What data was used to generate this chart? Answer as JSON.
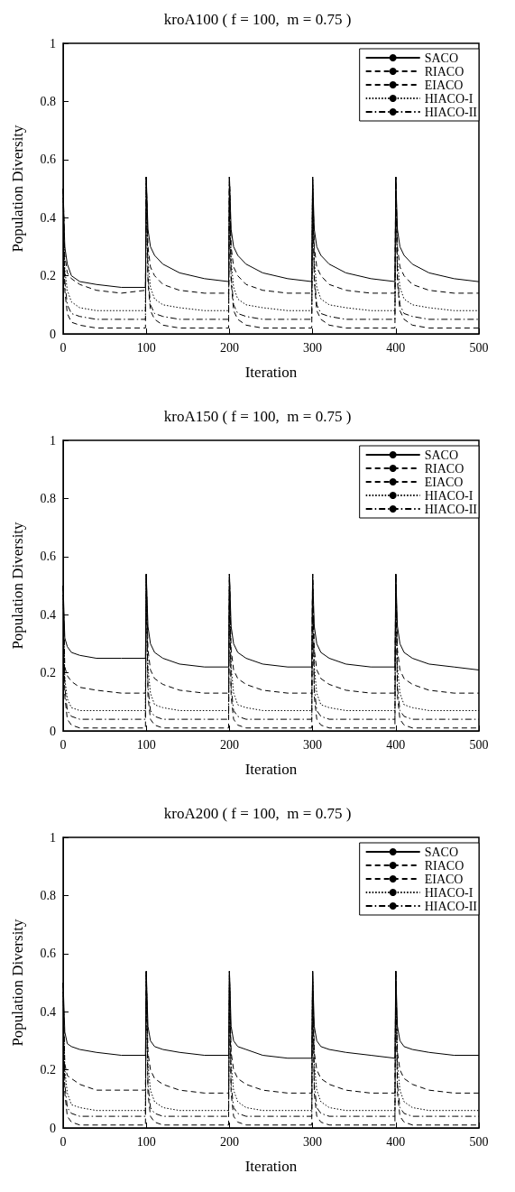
{
  "chart_data": [
    {
      "type": "line",
      "title": "kroA100 ( f = 100,  m = 0.75 )",
      "xlabel": "Iteration",
      "ylabel": "Population Diversity",
      "xlim": [
        0,
        500
      ],
      "ylim": [
        0,
        1
      ],
      "xticks": [
        0,
        100,
        200,
        300,
        400,
        500
      ],
      "yticks": [
        0,
        0.2,
        0.4,
        0.6,
        0.8,
        1
      ],
      "legend": "top right",
      "marker": "none",
      "x": [
        0,
        2,
        5,
        10,
        20,
        40,
        70,
        99,
        100,
        102,
        105,
        110,
        120,
        140,
        170,
        199,
        200,
        202,
        205,
        210,
        220,
        240,
        270,
        299,
        300,
        302,
        305,
        310,
        320,
        340,
        370,
        399,
        400,
        402,
        405,
        410,
        420,
        440,
        470,
        499,
        500
      ],
      "series": [
        {
          "name": "SACO",
          "color": "#000000",
          "line_style": "solid",
          "values": [
            0.5,
            0.3,
            0.24,
            0.2,
            0.18,
            0.17,
            0.16,
            0.16,
            0.54,
            0.36,
            0.3,
            0.27,
            0.24,
            0.21,
            0.19,
            0.18,
            0.54,
            0.36,
            0.3,
            0.27,
            0.24,
            0.21,
            0.19,
            0.18,
            0.54,
            0.36,
            0.3,
            0.27,
            0.24,
            0.21,
            0.19,
            0.18,
            0.54,
            0.36,
            0.3,
            0.27,
            0.24,
            0.21,
            0.19,
            0.18,
            0.18
          ]
        },
        {
          "name": "RIACO",
          "color": "#000000",
          "line_style": "dashed",
          "values": [
            0.5,
            0.27,
            0.21,
            0.19,
            0.17,
            0.15,
            0.14,
            0.15,
            0.54,
            0.3,
            0.23,
            0.2,
            0.17,
            0.15,
            0.14,
            0.14,
            0.54,
            0.3,
            0.23,
            0.2,
            0.17,
            0.15,
            0.14,
            0.14,
            0.54,
            0.3,
            0.23,
            0.2,
            0.17,
            0.15,
            0.14,
            0.14,
            0.54,
            0.3,
            0.23,
            0.2,
            0.17,
            0.15,
            0.14,
            0.14,
            0.14
          ]
        },
        {
          "name": "EIACO",
          "color": "#000000",
          "line_style": "dashed",
          "values": [
            0.5,
            0.15,
            0.07,
            0.04,
            0.03,
            0.02,
            0.02,
            0.02,
            0.54,
            0.18,
            0.08,
            0.05,
            0.03,
            0.02,
            0.02,
            0.02,
            0.54,
            0.18,
            0.08,
            0.05,
            0.03,
            0.02,
            0.02,
            0.02,
            0.54,
            0.18,
            0.08,
            0.05,
            0.03,
            0.02,
            0.02,
            0.02,
            0.54,
            0.18,
            0.08,
            0.05,
            0.03,
            0.02,
            0.02,
            0.02,
            0.02
          ]
        },
        {
          "name": "HIACO-I",
          "color": "#000000",
          "line_style": "dotted",
          "values": [
            0.5,
            0.22,
            0.15,
            0.11,
            0.09,
            0.08,
            0.08,
            0.08,
            0.54,
            0.25,
            0.16,
            0.12,
            0.1,
            0.09,
            0.08,
            0.08,
            0.54,
            0.25,
            0.16,
            0.12,
            0.1,
            0.09,
            0.08,
            0.08,
            0.54,
            0.25,
            0.16,
            0.12,
            0.1,
            0.09,
            0.08,
            0.08,
            0.54,
            0.25,
            0.16,
            0.12,
            0.1,
            0.09,
            0.08,
            0.08,
            0.08
          ]
        },
        {
          "name": "HIACO-II",
          "color": "#000000",
          "line_style": "dashdot",
          "values": [
            0.5,
            0.18,
            0.1,
            0.07,
            0.06,
            0.05,
            0.05,
            0.05,
            0.54,
            0.2,
            0.1,
            0.07,
            0.06,
            0.05,
            0.05,
            0.05,
            0.54,
            0.2,
            0.1,
            0.07,
            0.06,
            0.05,
            0.05,
            0.05,
            0.54,
            0.2,
            0.1,
            0.07,
            0.06,
            0.05,
            0.05,
            0.05,
            0.54,
            0.2,
            0.1,
            0.07,
            0.06,
            0.05,
            0.05,
            0.05,
            0.05
          ]
        }
      ]
    },
    {
      "type": "line",
      "title": "kroA150 ( f = 100,  m = 0.75 )",
      "xlabel": "Iteration",
      "ylabel": "Population Diversity",
      "xlim": [
        0,
        500
      ],
      "ylim": [
        0,
        1
      ],
      "xticks": [
        0,
        100,
        200,
        300,
        400,
        500
      ],
      "yticks": [
        0,
        0.2,
        0.4,
        0.6,
        0.8,
        1
      ],
      "legend": "top right",
      "marker": "none",
      "x": [
        0,
        2,
        5,
        10,
        20,
        40,
        70,
        99,
        100,
        102,
        105,
        110,
        120,
        140,
        170,
        199,
        200,
        202,
        205,
        210,
        220,
        240,
        270,
        299,
        300,
        302,
        305,
        310,
        320,
        340,
        370,
        399,
        400,
        402,
        405,
        410,
        420,
        440,
        470,
        499,
        500
      ],
      "series": [
        {
          "name": "SACO",
          "color": "#000000",
          "line_style": "solid",
          "values": [
            0.5,
            0.32,
            0.29,
            0.27,
            0.26,
            0.25,
            0.25,
            0.25,
            0.54,
            0.36,
            0.3,
            0.27,
            0.25,
            0.23,
            0.22,
            0.22,
            0.54,
            0.36,
            0.3,
            0.27,
            0.25,
            0.23,
            0.22,
            0.22,
            0.54,
            0.36,
            0.3,
            0.27,
            0.25,
            0.23,
            0.22,
            0.22,
            0.54,
            0.36,
            0.3,
            0.27,
            0.25,
            0.23,
            0.22,
            0.21,
            0.21
          ]
        },
        {
          "name": "RIACO",
          "color": "#000000",
          "line_style": "dashed",
          "values": [
            0.5,
            0.22,
            0.19,
            0.17,
            0.15,
            0.14,
            0.13,
            0.13,
            0.54,
            0.28,
            0.21,
            0.18,
            0.16,
            0.14,
            0.13,
            0.13,
            0.54,
            0.28,
            0.21,
            0.18,
            0.16,
            0.14,
            0.13,
            0.13,
            0.54,
            0.28,
            0.21,
            0.18,
            0.16,
            0.14,
            0.13,
            0.13,
            0.54,
            0.28,
            0.21,
            0.18,
            0.16,
            0.14,
            0.13,
            0.13,
            0.13
          ]
        },
        {
          "name": "EIACO",
          "color": "#000000",
          "line_style": "dashed",
          "values": [
            0.5,
            0.12,
            0.04,
            0.02,
            0.01,
            0.01,
            0.01,
            0.01,
            0.54,
            0.12,
            0.04,
            0.02,
            0.01,
            0.01,
            0.01,
            0.01,
            0.54,
            0.12,
            0.04,
            0.02,
            0.01,
            0.01,
            0.01,
            0.01,
            0.54,
            0.12,
            0.04,
            0.02,
            0.01,
            0.01,
            0.01,
            0.01,
            0.54,
            0.12,
            0.04,
            0.02,
            0.01,
            0.01,
            0.01,
            0.01,
            0.01
          ]
        },
        {
          "name": "HIACO-I",
          "color": "#000000",
          "line_style": "dotted",
          "values": [
            0.5,
            0.18,
            0.11,
            0.08,
            0.07,
            0.07,
            0.07,
            0.07,
            0.54,
            0.22,
            0.13,
            0.09,
            0.08,
            0.07,
            0.07,
            0.07,
            0.54,
            0.22,
            0.13,
            0.09,
            0.08,
            0.07,
            0.07,
            0.07,
            0.54,
            0.22,
            0.13,
            0.09,
            0.08,
            0.07,
            0.07,
            0.07,
            0.54,
            0.22,
            0.13,
            0.09,
            0.08,
            0.07,
            0.07,
            0.07,
            0.07
          ]
        },
        {
          "name": "HIACO-II",
          "color": "#000000",
          "line_style": "dashdot",
          "values": [
            0.5,
            0.15,
            0.07,
            0.05,
            0.04,
            0.04,
            0.04,
            0.04,
            0.54,
            0.15,
            0.07,
            0.05,
            0.04,
            0.04,
            0.04,
            0.04,
            0.54,
            0.15,
            0.07,
            0.05,
            0.04,
            0.04,
            0.04,
            0.04,
            0.54,
            0.15,
            0.07,
            0.05,
            0.04,
            0.04,
            0.04,
            0.04,
            0.54,
            0.15,
            0.07,
            0.05,
            0.04,
            0.04,
            0.04,
            0.04,
            0.04
          ]
        }
      ]
    },
    {
      "type": "line",
      "title": "kroA200 ( f = 100,  m = 0.75 )",
      "xlabel": "Iteration",
      "ylabel": "Population Diversity",
      "xlim": [
        0,
        500
      ],
      "ylim": [
        0,
        1
      ],
      "xticks": [
        0,
        100,
        200,
        300,
        400,
        500
      ],
      "yticks": [
        0,
        0.2,
        0.4,
        0.6,
        0.8,
        1
      ],
      "legend": "top right",
      "marker": "none",
      "x": [
        0,
        2,
        5,
        10,
        20,
        40,
        70,
        99,
        100,
        102,
        105,
        110,
        120,
        140,
        170,
        199,
        200,
        202,
        205,
        210,
        220,
        240,
        270,
        299,
        300,
        302,
        305,
        310,
        320,
        340,
        370,
        399,
        400,
        402,
        405,
        410,
        420,
        440,
        470,
        499,
        500
      ],
      "series": [
        {
          "name": "SACO",
          "color": "#000000",
          "line_style": "solid",
          "values": [
            0.5,
            0.33,
            0.29,
            0.28,
            0.27,
            0.26,
            0.25,
            0.25,
            0.54,
            0.35,
            0.3,
            0.28,
            0.27,
            0.26,
            0.25,
            0.25,
            0.54,
            0.35,
            0.3,
            0.28,
            0.27,
            0.25,
            0.24,
            0.24,
            0.54,
            0.35,
            0.3,
            0.28,
            0.27,
            0.26,
            0.25,
            0.24,
            0.54,
            0.35,
            0.3,
            0.28,
            0.27,
            0.26,
            0.25,
            0.25,
            0.25
          ]
        },
        {
          "name": "RIACO",
          "color": "#000000",
          "line_style": "dashed",
          "values": [
            0.5,
            0.22,
            0.18,
            0.17,
            0.15,
            0.13,
            0.13,
            0.13,
            0.54,
            0.26,
            0.2,
            0.17,
            0.15,
            0.13,
            0.12,
            0.12,
            0.54,
            0.26,
            0.2,
            0.17,
            0.15,
            0.13,
            0.12,
            0.12,
            0.54,
            0.26,
            0.2,
            0.17,
            0.15,
            0.13,
            0.12,
            0.12,
            0.54,
            0.26,
            0.2,
            0.17,
            0.15,
            0.13,
            0.12,
            0.12,
            0.12
          ]
        },
        {
          "name": "EIACO",
          "color": "#000000",
          "line_style": "dashed",
          "values": [
            0.5,
            0.12,
            0.04,
            0.02,
            0.01,
            0.01,
            0.01,
            0.01,
            0.54,
            0.12,
            0.04,
            0.02,
            0.01,
            0.01,
            0.01,
            0.01,
            0.54,
            0.12,
            0.04,
            0.02,
            0.01,
            0.01,
            0.01,
            0.01,
            0.54,
            0.12,
            0.04,
            0.02,
            0.01,
            0.01,
            0.01,
            0.01,
            0.54,
            0.12,
            0.04,
            0.02,
            0.01,
            0.01,
            0.01,
            0.01,
            0.01
          ]
        },
        {
          "name": "HIACO-I",
          "color": "#000000",
          "line_style": "dotted",
          "values": [
            0.5,
            0.2,
            0.12,
            0.08,
            0.07,
            0.06,
            0.06,
            0.06,
            0.54,
            0.22,
            0.13,
            0.09,
            0.07,
            0.06,
            0.06,
            0.06,
            0.54,
            0.22,
            0.13,
            0.09,
            0.07,
            0.06,
            0.06,
            0.06,
            0.54,
            0.22,
            0.13,
            0.09,
            0.07,
            0.06,
            0.06,
            0.06,
            0.54,
            0.22,
            0.13,
            0.09,
            0.07,
            0.06,
            0.06,
            0.06,
            0.06
          ]
        },
        {
          "name": "HIACO-II",
          "color": "#000000",
          "line_style": "dashdot",
          "values": [
            0.5,
            0.15,
            0.07,
            0.05,
            0.04,
            0.04,
            0.04,
            0.04,
            0.54,
            0.15,
            0.07,
            0.05,
            0.04,
            0.04,
            0.04,
            0.04,
            0.54,
            0.15,
            0.07,
            0.05,
            0.04,
            0.04,
            0.04,
            0.04,
            0.54,
            0.15,
            0.07,
            0.05,
            0.04,
            0.04,
            0.04,
            0.04,
            0.54,
            0.15,
            0.07,
            0.05,
            0.04,
            0.04,
            0.04,
            0.04,
            0.04
          ]
        }
      ]
    }
  ]
}
